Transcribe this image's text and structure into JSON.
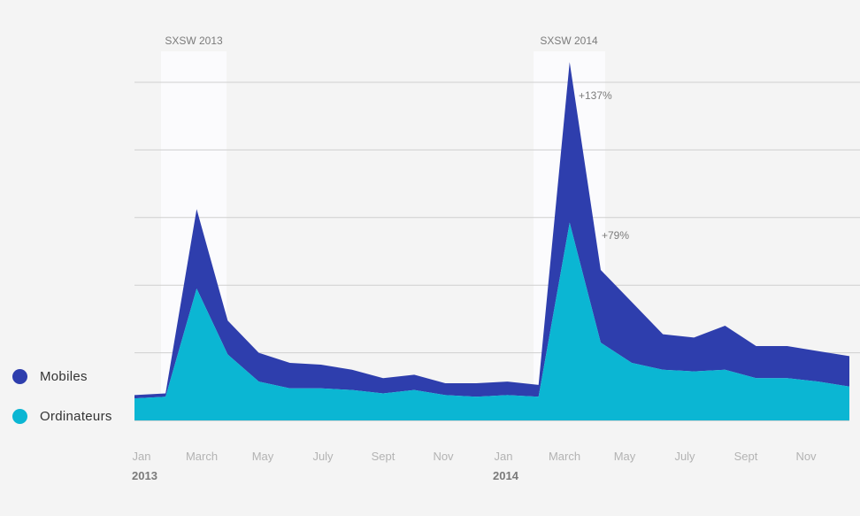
{
  "chart_data": {
    "type": "area",
    "stacked": true,
    "title": "",
    "xlabel": "",
    "ylabel": "",
    "grid": true,
    "legend_placement": "bottom-left",
    "year_labels": [
      "2013",
      "2014"
    ],
    "tick_labels": [
      "Jan",
      "March",
      "May",
      "July",
      "Sept",
      "Nov",
      "Jan",
      "March",
      "May",
      "July",
      "Sept",
      "Nov"
    ],
    "x": [
      0,
      1,
      2,
      3,
      4,
      5,
      6,
      7,
      8,
      9,
      10,
      11,
      12,
      13,
      14,
      15,
      16,
      17,
      18,
      19,
      20,
      21,
      22,
      23
    ],
    "series": [
      {
        "name": "Ordinateurs",
        "color": "#0bb6d3",
        "values": [
          13,
          14,
          78,
          39,
          23,
          19,
          19,
          18,
          16,
          18,
          15,
          14,
          15,
          14,
          117,
          46,
          34,
          30,
          29,
          30,
          25,
          25,
          23,
          20
        ]
      },
      {
        "name": "Mobiles",
        "color": "#2e3ead",
        "values": [
          2,
          2,
          47,
          20,
          17,
          15,
          14,
          12,
          9,
          9,
          7,
          8,
          8,
          7,
          95,
          43,
          36,
          21,
          20,
          26,
          19,
          19,
          18,
          18
        ]
      }
    ],
    "y_gridlines": [
      200,
      160,
      120,
      80,
      40
    ],
    "ylim": [
      0,
      200
    ],
    "highlights": [
      {
        "label": "SXSW 2013",
        "x_start": 1,
        "x_end": 3
      },
      {
        "label": "SXSW 2014",
        "x_start": 13,
        "x_end": 15
      }
    ],
    "annotations": [
      {
        "text": "+137%",
        "x": 14
      },
      {
        "text": "+79%",
        "x": 15
      }
    ]
  },
  "legend": {
    "items": [
      {
        "label": "Mobiles",
        "color": "#2e3ead"
      },
      {
        "label": "Ordinateurs",
        "color": "#0bb6d3"
      }
    ]
  }
}
